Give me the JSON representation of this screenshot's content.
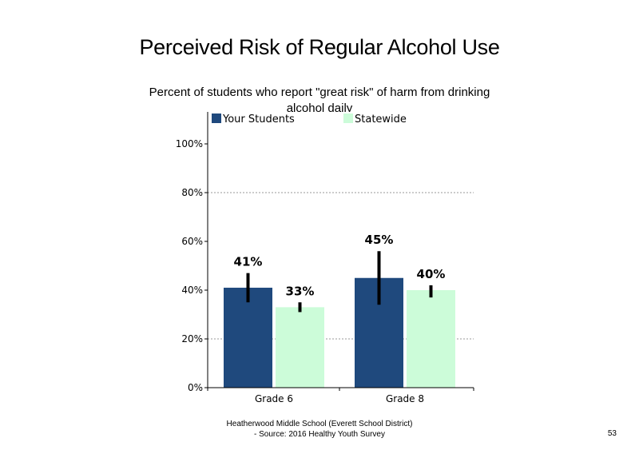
{
  "title": "Perceived Risk of Regular Alcohol Use",
  "subtitle": "Percent of students who report \"great risk\" of harm from drinking alcohol daily",
  "footer": {
    "line1": "Heatherwood Middle School (Everett School District)",
    "line2": "- Source: 2016 Healthy  Youth Survey"
  },
  "page_number": "53",
  "chart_data": {
    "type": "bar",
    "categories": [
      "Grade 6",
      "Grade 8"
    ],
    "series": [
      {
        "name": "Your Students",
        "color": "#1f497d",
        "values": [
          41,
          45
        ],
        "labels": [
          "41%",
          "45%"
        ],
        "error_low": [
          35,
          34
        ],
        "error_high": [
          47,
          56
        ]
      },
      {
        "name": "Statewide",
        "color": "#ccfcd9",
        "values": [
          33,
          40
        ],
        "labels": [
          "33%",
          "40%"
        ],
        "error_low": [
          31,
          37
        ],
        "error_high": [
          35,
          42
        ]
      }
    ],
    "ylim": [
      0,
      100
    ],
    "yticks": [
      0,
      20,
      40,
      60,
      80,
      100
    ],
    "ytick_labels": [
      "0%",
      "20%",
      "40%",
      "60%",
      "80%",
      "100%"
    ],
    "grid": "dotted horizontal",
    "legend": "top"
  }
}
